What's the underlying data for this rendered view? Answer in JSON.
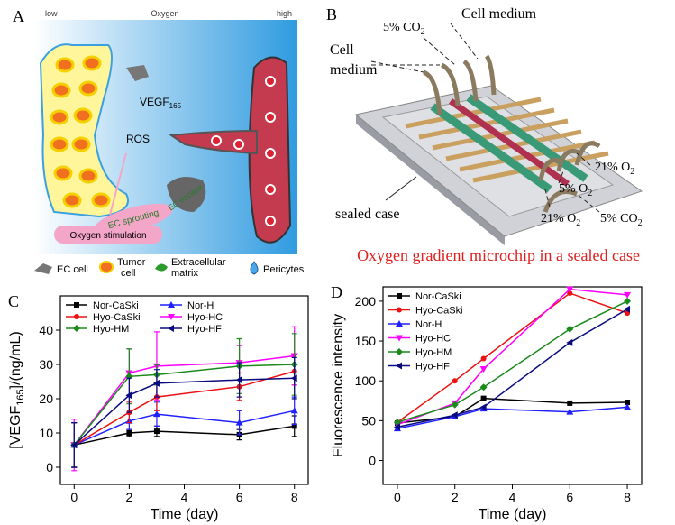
{
  "panel_a": {
    "label": "A",
    "low": "low",
    "oxygen": "Oxygen",
    "high": "high",
    "vegf": "VEGF",
    "vegf_sub": "165",
    "ros": "ROS",
    "ec_sprouting": "EC sprouting",
    "ec_escape": "EC escape",
    "oxygen_stimulation": "Oxygen stimulation",
    "legend_ec_cell": "EC cell",
    "legend_tumor_1": "Tumor",
    "legend_tumor_2": "cell",
    "legend_matrix_1": "Extracellular",
    "legend_matrix_2": "matrix",
    "legend_pericytes": "Pericytes"
  },
  "panel_b": {
    "label": "B",
    "cell_medium_top": "Cell medium",
    "co2_top": "5% CO",
    "co2_top_sub": "2",
    "cell_medium_left_1": "Cell",
    "cell_medium_left_2": "medium",
    "o2_right": "21% O",
    "o2_right_sub": "2",
    "o2_mid": "5% O",
    "o2_mid_sub": "2",
    "o2_bottom": "21% O",
    "o2_bottom_sub": "2",
    "co2_bottom": "5% CO",
    "co2_bottom_sub": "2",
    "sealed_case": "sealed case",
    "caption": "Oxygen gradient microchip in a sealed case"
  },
  "chart_data": [
    {
      "type": "line",
      "label": "C",
      "xlabel": "Time (day)",
      "ylabel": [
        "[VEGF",
        "165",
        "]/(ng/mL)"
      ],
      "x": [
        0,
        2,
        3,
        6,
        8
      ],
      "xlim": [
        -0.5,
        8.5
      ],
      "xticks": [
        0,
        2,
        4,
        6,
        8
      ],
      "ylim": [
        -5,
        50
      ],
      "yticks": [
        0,
        10,
        20,
        30,
        40
      ],
      "legend_columns": 2,
      "series": [
        {
          "name": "Nor-CaSki",
          "color": "#000000",
          "marker": "square",
          "values": [
            6.5,
            10,
            10.5,
            9.5,
            12
          ],
          "errors": [
            6.5,
            1,
            1.5,
            1.5,
            3
          ]
        },
        {
          "name": "Nor-H",
          "color": "#2020ff",
          "marker": "triangle-up",
          "values": [
            6.5,
            13.5,
            15.5,
            13,
            16.5
          ],
          "errors": [
            6.5,
            2.5,
            3.5,
            3.5,
            4
          ]
        },
        {
          "name": "Hyo-CaSki",
          "color": "#ee1111",
          "marker": "circle",
          "values": [
            6.5,
            16,
            20.5,
            23.5,
            28
          ],
          "errors": [
            6.5,
            3,
            4,
            4,
            4
          ]
        },
        {
          "name": "Hyo-HC",
          "color": "#ff00ff",
          "marker": "triangle-down",
          "values": [
            6.5,
            27.5,
            29.5,
            30.5,
            32.5
          ],
          "errors": [
            7.5,
            7,
            10,
            5,
            8.5
          ]
        },
        {
          "name": "Hyo-HM",
          "color": "#1a8a1a",
          "marker": "diamond",
          "values": [
            6.5,
            26.5,
            27,
            29.5,
            30
          ],
          "errors": [
            6.5,
            8,
            3,
            8,
            9
          ]
        },
        {
          "name": "Hyo-HF",
          "color": "#0a0a80",
          "marker": "triangle-left",
          "values": [
            6.5,
            21,
            24.5,
            25.5,
            26
          ],
          "errors": [
            6.5,
            5,
            4,
            5,
            6
          ]
        }
      ]
    },
    {
      "type": "line",
      "label": "D",
      "xlabel": "Time (day)",
      "ylabel": "Fluorescence intensity",
      "x": [
        0,
        2,
        3,
        6,
        8
      ],
      "xlim": [
        -0.5,
        8.5
      ],
      "xticks": [
        0,
        2,
        4,
        6,
        8
      ],
      "ylim": [
        -30,
        218
      ],
      "yticks": [
        0,
        50,
        100,
        150,
        200
      ],
      "legend_columns": 1,
      "series": [
        {
          "name": "Nor-CaSki",
          "color": "#000000",
          "marker": "square",
          "values": [
            47,
            55,
            78,
            72,
            73
          ]
        },
        {
          "name": "Hyo-CaSki",
          "color": "#ee1111",
          "marker": "circle",
          "values": [
            48,
            100,
            128,
            210,
            185
          ]
        },
        {
          "name": "Nor-H",
          "color": "#2020ff",
          "marker": "triangle-up",
          "values": [
            40,
            55,
            65,
            61,
            67
          ]
        },
        {
          "name": "Hyo-HC",
          "color": "#ff00ff",
          "marker": "triangle-down",
          "values": [
            45,
            72,
            115,
            215,
            208
          ]
        },
        {
          "name": "Hyo-HM",
          "color": "#1a8a1a",
          "marker": "diamond",
          "values": [
            48,
            70,
            92,
            165,
            200
          ]
        },
        {
          "name": "Hyo-HF",
          "color": "#0a0a80",
          "marker": "triangle-left",
          "values": [
            42,
            57,
            67,
            148,
            190
          ]
        }
      ]
    }
  ]
}
